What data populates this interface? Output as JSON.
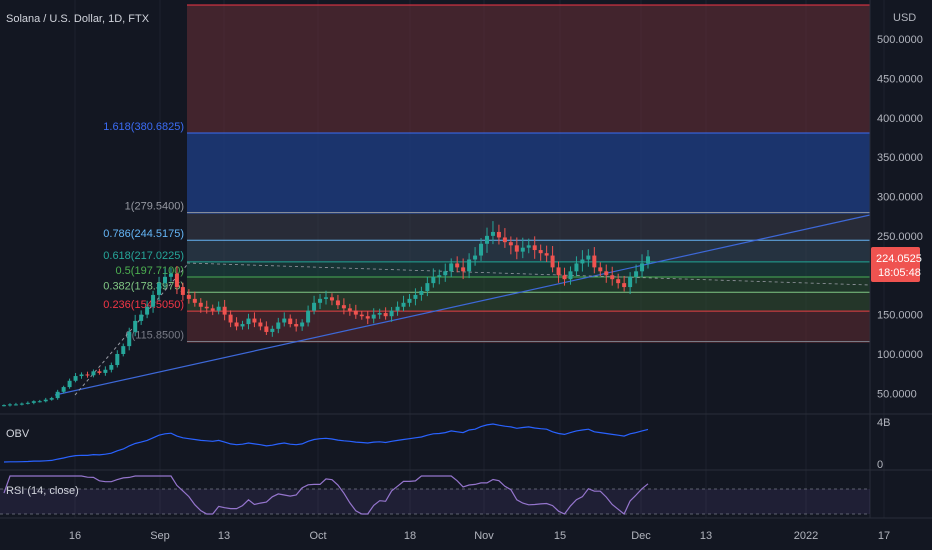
{
  "chart_data": {
    "type": "candlestick",
    "title": "Solana / U.S. Dollar, 1D, FTX",
    "currency": "USD",
    "y_ticks": [
      "500.0000",
      "450.0000",
      "400.0000",
      "350.0000",
      "300.0000",
      "250.0000",
      "150.0000",
      "100.0000",
      "50.0000"
    ],
    "y_tick_values": [
      500,
      450,
      400,
      350,
      300,
      250,
      150,
      100,
      50
    ],
    "ylim": [
      30,
      545
    ],
    "x_ticks": [
      "16",
      "Sep",
      "13",
      "Oct",
      "18",
      "Nov",
      "15",
      "Dec",
      "13",
      "2022",
      "17"
    ],
    "last_price": "224.0525",
    "countdown": "18:05:48",
    "colors": {
      "up": "#26a69a",
      "down": "#ef5350",
      "trend": "#3d68d8",
      "bg": "#131722"
    },
    "fib_levels": [
      {
        "label": "1.618(380.6825)",
        "value": 380.6825,
        "color": "#3b6cf4"
      },
      {
        "label": "1(279.5400)",
        "value": 279.54,
        "color": "#9598a1"
      },
      {
        "label": "0.786(244.5175)",
        "value": 244.5175,
        "color": "#64b5f6"
      },
      {
        "label": "0.618(217.0225)",
        "value": 217.0225,
        "color": "#26a69a"
      },
      {
        "label": "0.5(197.7100)",
        "value": 197.71,
        "color": "#4caf50"
      },
      {
        "label": "0.382(178.3975)",
        "value": 178.3975,
        "color": "#81c784"
      },
      {
        "label": "0.236(154.5050)",
        "value": 154.505,
        "color": "#f23645"
      },
      {
        "label": "0(115.8500)",
        "value": 115.85,
        "color": "#787b86"
      }
    ],
    "closes": [
      35,
      36,
      36,
      37,
      38,
      40,
      40,
      42,
      44,
      52,
      58,
      66,
      72,
      74,
      73,
      78,
      76,
      80,
      86,
      100,
      110,
      128,
      142,
      150,
      160,
      175,
      190,
      198,
      202,
      185,
      175,
      170,
      165,
      160,
      158,
      155,
      160,
      150,
      140,
      135,
      138,
      145,
      140,
      135,
      128,
      132,
      140,
      145,
      138,
      135,
      140,
      155,
      165,
      170,
      172,
      168,
      162,
      158,
      155,
      150,
      148,
      145,
      150,
      152,
      148,
      155,
      160,
      165,
      170,
      175,
      180,
      190,
      198,
      200,
      205,
      215,
      210,
      205,
      220,
      225,
      240,
      250,
      255,
      248,
      242,
      238,
      230,
      235,
      238,
      232,
      228,
      225,
      210,
      200,
      195,
      205,
      215,
      220,
      225,
      210,
      205,
      200,
      195,
      190,
      185,
      198,
      205,
      215,
      224
    ],
    "panes": [
      {
        "label": "OBV",
        "ticks": [
          "4B",
          "0"
        ]
      },
      {
        "label": "RSI (14, close)",
        "ticks": []
      }
    ]
  }
}
